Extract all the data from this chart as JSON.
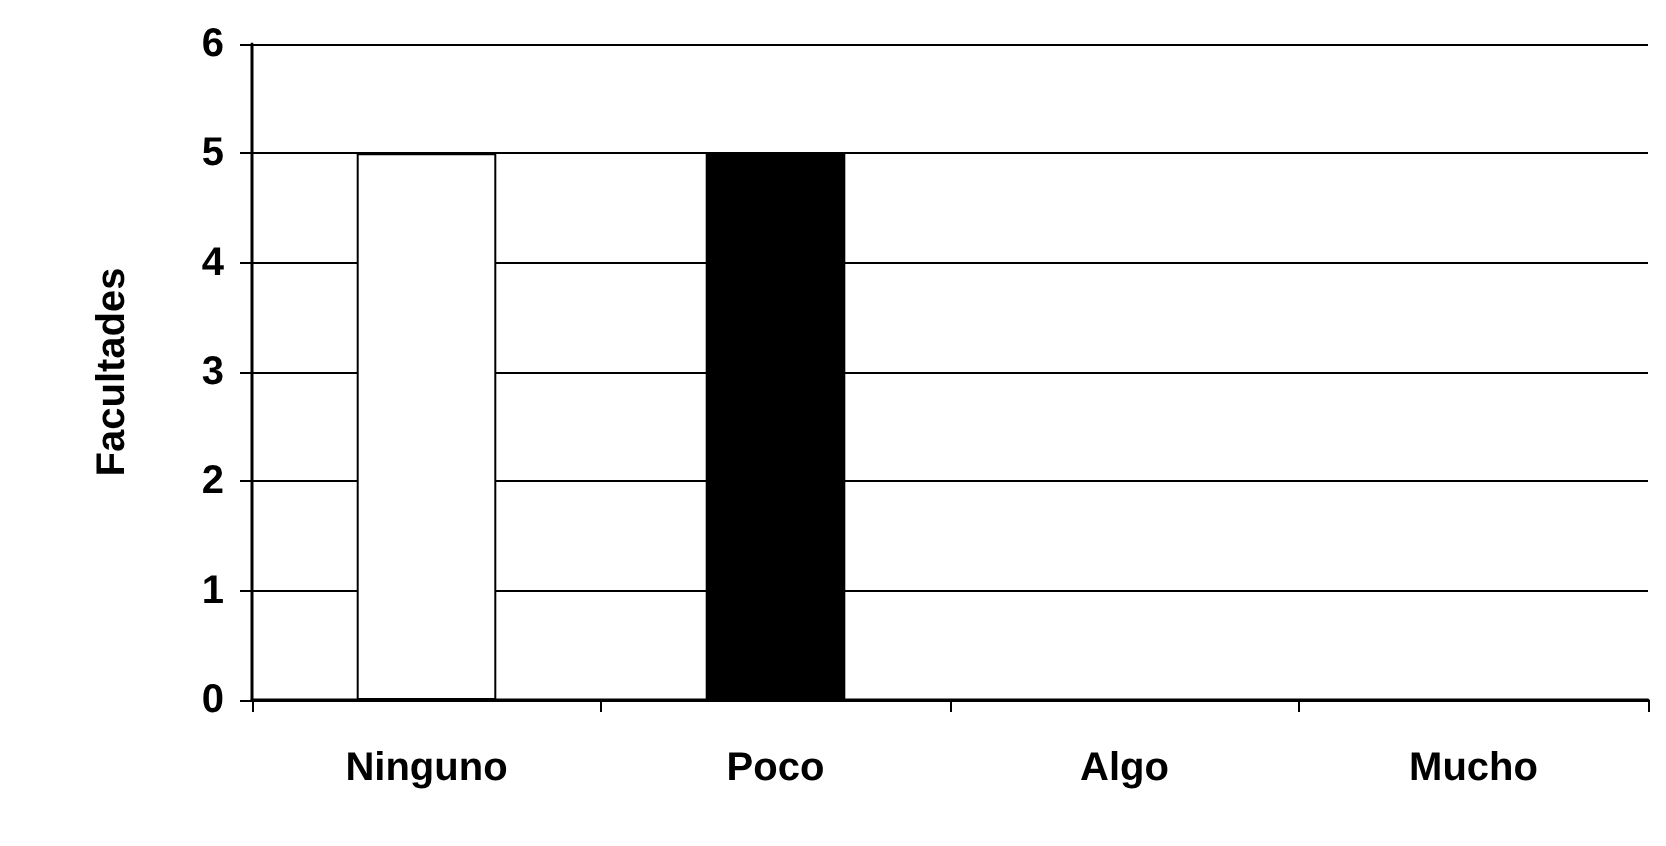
{
  "chart_data": {
    "type": "bar",
    "ylabel": "Facultades",
    "categories": [
      "Ninguno",
      "Poco",
      "Algo",
      "Mucho"
    ],
    "values": [
      5,
      5,
      0,
      0
    ],
    "colors": [
      "#ffffff",
      "#000000",
      "#ffffff",
      "#ffffff"
    ],
    "ylim": [
      0,
      6
    ],
    "yticks": [
      0,
      1,
      2,
      3,
      4,
      5,
      6
    ],
    "grid": "y"
  }
}
